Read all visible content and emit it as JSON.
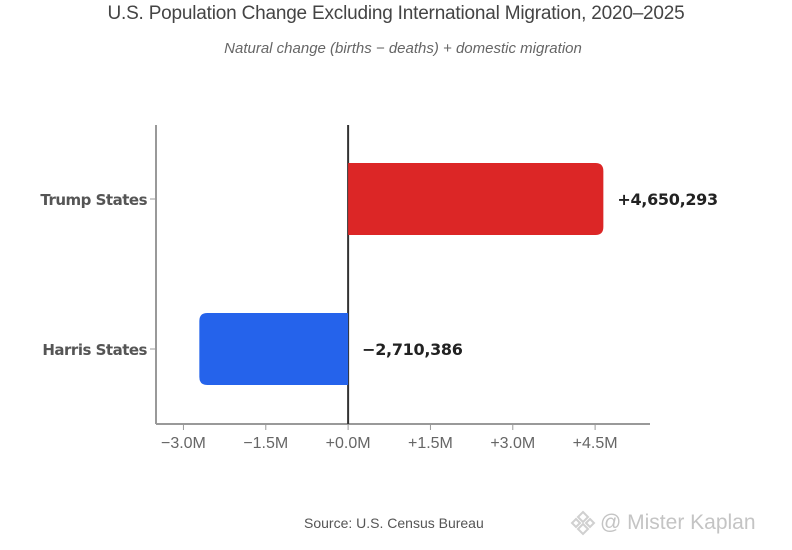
{
  "chart_data": {
    "type": "bar",
    "orientation": "horizontal",
    "title": "U.S. Population Change Excluding International Migration, 2020–2025",
    "subtitle": "Natural change (births − deaths) + domestic migration",
    "categories": [
      "Trump States",
      "Harris States"
    ],
    "values": [
      4650293,
      -2710386
    ],
    "value_labels": [
      "+4,650,293",
      "−2,710,386"
    ],
    "colors": [
      "#dc2626",
      "#2563eb"
    ],
    "xlim": [
      -3500000,
      5500000
    ],
    "xticks": [
      -3000000,
      -1500000,
      0,
      1500000,
      3000000,
      4500000
    ],
    "xtick_labels": [
      "−3.0M",
      "−1.5M",
      "+0.0M",
      "+1.5M",
      "+3.0M",
      "+4.5M"
    ],
    "xlabel": "",
    "ylabel": "",
    "grid": false,
    "source": "Source: U.S. Census Bureau"
  },
  "watermark": {
    "text": "@ Mister Kaplan",
    "icon": "diamond-logo-icon"
  }
}
